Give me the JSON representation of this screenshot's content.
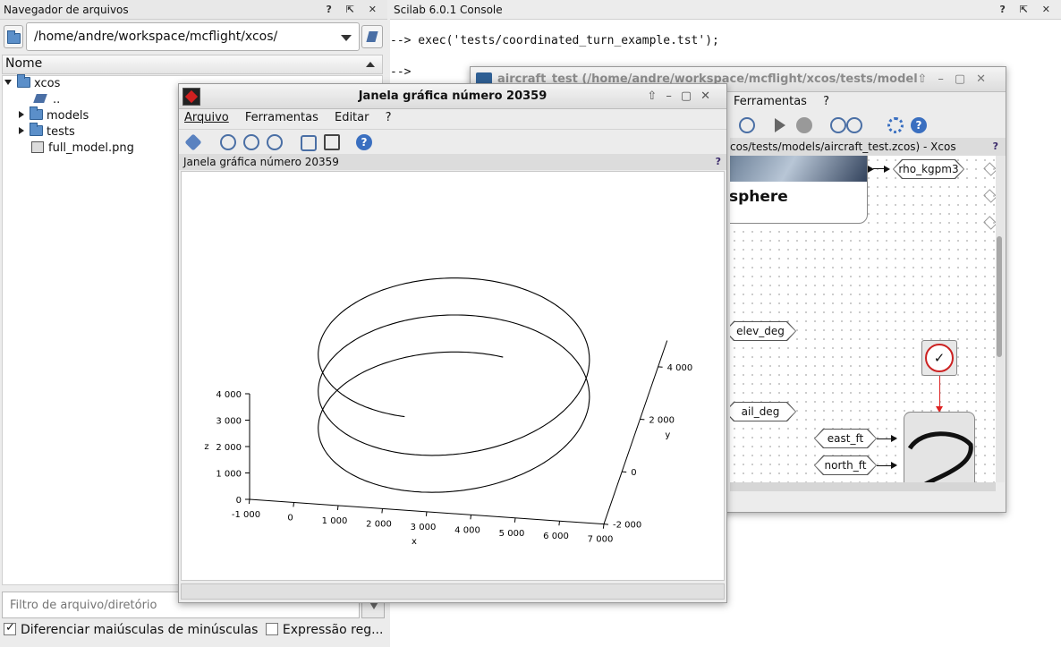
{
  "file_browser": {
    "title": "Navegador de arquivos",
    "path": "/home/andre/workspace/mcflight/xcos/",
    "column_header": "Nome",
    "tree": [
      {
        "label": "xcos",
        "kind": "folder",
        "expanded": true
      },
      {
        "label": "..",
        "kind": "up"
      },
      {
        "label": "models",
        "kind": "folder",
        "expanded": false
      },
      {
        "label": "tests",
        "kind": "folder",
        "expanded": false
      },
      {
        "label": "full_model.png",
        "kind": "image"
      }
    ],
    "filter_placeholder": "Filtro de arquivo/diretório",
    "case_label": "Diferenciar maiúsculas de minúsculas",
    "regex_label": "Expressão reg..."
  },
  "console": {
    "title": "Scilab 6.0.1 Console",
    "lines": [
      "--> exec('tests/coordinated_turn_example.tst');",
      "-->"
    ]
  },
  "xcos": {
    "title": "aircraft_test (/home/andre/workspace/mcflight/xcos/tests/models/aircr",
    "menu_partial": [
      "Ferramentas",
      "?"
    ],
    "tab_title": "cos/tests/models/aircraft_test.zcos) - Xcos",
    "block_label": "sphere",
    "ports": [
      "rho_kgpm3",
      "elev_deg",
      "ail_deg",
      "east_ft",
      "north_ft"
    ],
    "colors": {
      "clock_ring": "#cc2222",
      "link": "#dd2222"
    }
  },
  "graphic": {
    "title": "Janela gráfica número 20359",
    "menu": [
      "Arquivo",
      "Ferramentas",
      "Editar",
      "?"
    ],
    "panel_title": "Janela gráfica número 20359"
  },
  "chart_data": {
    "type": "line",
    "title": "",
    "xlabel": "x",
    "ylabel": "y",
    "zlabel": "z",
    "x_ticks": [
      "-1 000",
      "0",
      "1 000",
      "2 000",
      "3 000",
      "4 000",
      "5 000",
      "6 000",
      "7 000"
    ],
    "y_ticks": [
      "-2 000",
      "0",
      "2 000",
      "4 000"
    ],
    "z_ticks": [
      "0",
      "1 000",
      "2 000",
      "3 000",
      "4 000"
    ],
    "series": [
      {
        "kind": "3d-helix",
        "turns": 2.5,
        "x_center": 3000,
        "y_center": 1000,
        "radius": 3000,
        "z_range": [
          0,
          3500
        ]
      }
    ]
  }
}
